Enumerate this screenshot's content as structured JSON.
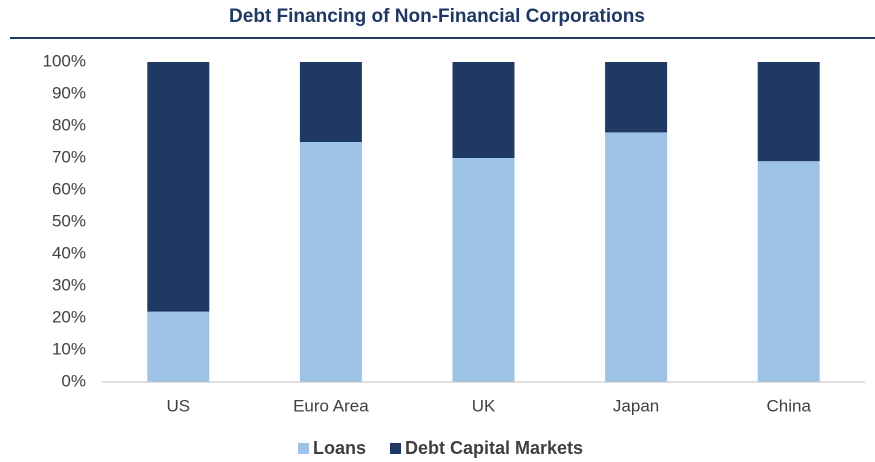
{
  "chart_data": {
    "type": "stacked_bar",
    "title": "Debt Financing of Non-Financial Corporations",
    "categories": [
      "US",
      "Euro Area",
      "UK",
      "Japan",
      "China"
    ],
    "series": [
      {
        "name": "Loans",
        "color": "#9dc3e6",
        "values": [
          22,
          75,
          70,
          78,
          69
        ]
      },
      {
        "name": "Debt Capital Markets",
        "color": "#1f3864",
        "values": [
          78,
          25,
          30,
          22,
          31
        ]
      }
    ],
    "ylim": [
      0,
      100
    ],
    "yticks": [
      {
        "value": 0,
        "label": "0%"
      },
      {
        "value": 10,
        "label": "10%"
      },
      {
        "value": 20,
        "label": "20%"
      },
      {
        "value": 30,
        "label": "30%"
      },
      {
        "value": 40,
        "label": "40%"
      },
      {
        "value": 50,
        "label": "50%"
      },
      {
        "value": 60,
        "label": "60%"
      },
      {
        "value": 70,
        "label": "70%"
      },
      {
        "value": 80,
        "label": "80%"
      },
      {
        "value": 90,
        "label": "90%"
      },
      {
        "value": 100,
        "label": "100%"
      }
    ],
    "grid": false,
    "legend": "bottom"
  }
}
